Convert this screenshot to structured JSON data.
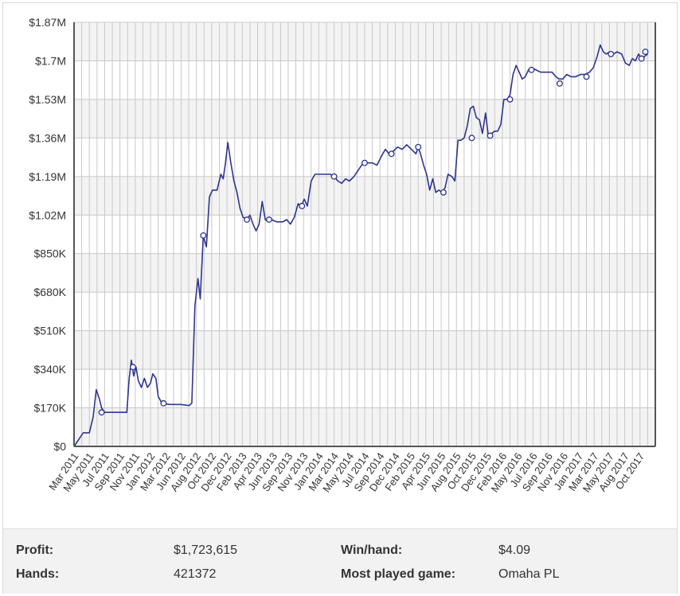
{
  "chart_data": {
    "type": "line",
    "title": "",
    "xlabel": "",
    "ylabel": "",
    "ylim": [
      0,
      1870000
    ],
    "y_ticks": [
      "$0",
      "$170K",
      "$340K",
      "$510K",
      "$680K",
      "$850K",
      "$1.02M",
      "$1.19M",
      "$1.36M",
      "$1.53M",
      "$1.7M",
      "$1.87M"
    ],
    "x_ticks": [
      "Mar 2011",
      "May 2011",
      "Jul 2011",
      "Sep 2011",
      "Nov 2011",
      "Jan 2012",
      "Mar 2012",
      "Jun 2012",
      "Aug 2012",
      "Oct 2012",
      "Dec 2012",
      "Feb 2013",
      "Apr 2013",
      "Jun 2013",
      "Sep 2013",
      "Nov 2013",
      "Jan 2014",
      "Mar 2014",
      "May 2014",
      "Jul 2014",
      "Sep 2014",
      "Dec 2014",
      "Feb 2015",
      "Apr 2015",
      "Jun 2015",
      "Aug 2015",
      "Oct 2015",
      "Dec 2015",
      "Feb 2016",
      "May 2016",
      "Jul 2016",
      "Sep 2016",
      "Nov 2016",
      "Jan 2017",
      "Mar 2017",
      "May 2017",
      "Aug 2017",
      "Oct 2017"
    ],
    "grid": true,
    "line_color": "#2f3590",
    "series": [
      {
        "values": [
          [
            0.0,
            0
          ],
          [
            0.8,
            40000
          ],
          [
            1.2,
            60000
          ],
          [
            2.0,
            60000
          ],
          [
            2.5,
            130000
          ],
          [
            2.9,
            250000
          ],
          [
            3.3,
            210000
          ],
          [
            3.6,
            170000
          ],
          [
            4.0,
            150000
          ],
          [
            5.0,
            150000
          ],
          [
            6.0,
            150000
          ],
          [
            6.9,
            150000
          ],
          [
            7.2,
            300000
          ],
          [
            7.5,
            380000
          ],
          [
            7.8,
            310000
          ],
          [
            8.1,
            350000
          ],
          [
            8.4,
            290000
          ],
          [
            8.8,
            260000
          ],
          [
            9.2,
            300000
          ],
          [
            9.6,
            260000
          ],
          [
            10.0,
            280000
          ],
          [
            10.3,
            320000
          ],
          [
            10.7,
            300000
          ],
          [
            11.0,
            220000
          ],
          [
            11.5,
            190000
          ],
          [
            12.5,
            185000
          ],
          [
            14.0,
            185000
          ],
          [
            15.0,
            180000
          ],
          [
            15.4,
            190000
          ],
          [
            15.8,
            620000
          ],
          [
            16.2,
            740000
          ],
          [
            16.5,
            650000
          ],
          [
            16.9,
            930000
          ],
          [
            17.3,
            880000
          ],
          [
            17.7,
            1100000
          ],
          [
            18.1,
            1130000
          ],
          [
            18.7,
            1130000
          ],
          [
            19.2,
            1200000
          ],
          [
            19.5,
            1180000
          ],
          [
            19.8,
            1250000
          ],
          [
            20.1,
            1340000
          ],
          [
            20.5,
            1250000
          ],
          [
            20.9,
            1170000
          ],
          [
            21.3,
            1120000
          ],
          [
            21.7,
            1050000
          ],
          [
            22.1,
            1010000
          ],
          [
            22.6,
            1000000
          ],
          [
            23.0,
            1020000
          ],
          [
            23.4,
            980000
          ],
          [
            23.8,
            950000
          ],
          [
            24.2,
            980000
          ],
          [
            24.6,
            1080000
          ],
          [
            25.0,
            1000000
          ],
          [
            25.4,
            990000
          ],
          [
            25.8,
            1000000
          ],
          [
            26.5,
            990000
          ],
          [
            27.3,
            990000
          ],
          [
            27.8,
            1000000
          ],
          [
            28.3,
            980000
          ],
          [
            28.8,
            1010000
          ],
          [
            29.3,
            1070000
          ],
          [
            29.7,
            1060000
          ],
          [
            30.1,
            1090000
          ],
          [
            30.5,
            1060000
          ],
          [
            31.0,
            1170000
          ],
          [
            31.5,
            1200000
          ],
          [
            32.5,
            1200000
          ],
          [
            33.5,
            1200000
          ],
          [
            34.0,
            1190000
          ],
          [
            34.5,
            1170000
          ],
          [
            35.0,
            1160000
          ],
          [
            35.5,
            1180000
          ],
          [
            36.0,
            1170000
          ],
          [
            36.6,
            1190000
          ],
          [
            37.2,
            1220000
          ],
          [
            37.8,
            1250000
          ],
          [
            38.4,
            1250000
          ],
          [
            39.0,
            1250000
          ],
          [
            39.6,
            1240000
          ],
          [
            40.2,
            1280000
          ],
          [
            40.7,
            1310000
          ],
          [
            41.2,
            1290000
          ],
          [
            41.7,
            1300000
          ],
          [
            42.3,
            1320000
          ],
          [
            42.9,
            1310000
          ],
          [
            43.5,
            1330000
          ],
          [
            44.1,
            1310000
          ],
          [
            44.7,
            1290000
          ],
          [
            45.0,
            1320000
          ],
          [
            45.3,
            1290000
          ],
          [
            45.7,
            1240000
          ],
          [
            46.1,
            1200000
          ],
          [
            46.5,
            1130000
          ],
          [
            46.9,
            1180000
          ],
          [
            47.3,
            1120000
          ],
          [
            47.7,
            1130000
          ],
          [
            48.1,
            1120000
          ],
          [
            48.5,
            1140000
          ],
          [
            48.9,
            1200000
          ],
          [
            49.4,
            1190000
          ],
          [
            49.8,
            1170000
          ],
          [
            50.2,
            1350000
          ],
          [
            50.6,
            1350000
          ],
          [
            51.0,
            1360000
          ],
          [
            51.4,
            1410000
          ],
          [
            51.8,
            1490000
          ],
          [
            52.2,
            1500000
          ],
          [
            52.6,
            1450000
          ],
          [
            53.0,
            1440000
          ],
          [
            53.4,
            1380000
          ],
          [
            53.8,
            1470000
          ],
          [
            54.2,
            1360000
          ],
          [
            54.6,
            1380000
          ],
          [
            55.0,
            1390000
          ],
          [
            55.4,
            1390000
          ],
          [
            55.8,
            1420000
          ],
          [
            56.2,
            1530000
          ],
          [
            56.6,
            1530000
          ],
          [
            57.0,
            1550000
          ],
          [
            57.4,
            1640000
          ],
          [
            57.8,
            1680000
          ],
          [
            58.2,
            1650000
          ],
          [
            58.6,
            1620000
          ],
          [
            59.0,
            1630000
          ],
          [
            59.4,
            1660000
          ],
          [
            59.8,
            1670000
          ],
          [
            60.4,
            1660000
          ],
          [
            61.0,
            1650000
          ],
          [
            61.8,
            1650000
          ],
          [
            62.5,
            1650000
          ],
          [
            63.0,
            1630000
          ],
          [
            63.4,
            1620000
          ],
          [
            63.9,
            1620000
          ],
          [
            64.4,
            1640000
          ],
          [
            65.0,
            1630000
          ],
          [
            65.6,
            1630000
          ],
          [
            66.2,
            1640000
          ],
          [
            66.8,
            1640000
          ],
          [
            67.4,
            1650000
          ],
          [
            67.9,
            1670000
          ],
          [
            68.4,
            1720000
          ],
          [
            68.8,
            1770000
          ],
          [
            69.2,
            1740000
          ],
          [
            69.6,
            1730000
          ],
          [
            70.0,
            1740000
          ],
          [
            70.5,
            1730000
          ],
          [
            71.0,
            1740000
          ],
          [
            71.6,
            1730000
          ],
          [
            72.1,
            1690000
          ],
          [
            72.6,
            1680000
          ],
          [
            73.0,
            1710000
          ],
          [
            73.4,
            1700000
          ],
          [
            73.8,
            1730000
          ],
          [
            74.2,
            1710000
          ],
          [
            74.6,
            1720000
          ],
          [
            75.0,
            1730000
          ]
        ],
        "markers": [
          [
            3.6,
            150000
          ],
          [
            7.7,
            350000
          ],
          [
            11.7,
            190000
          ],
          [
            16.9,
            930000
          ],
          [
            22.6,
            1000000
          ],
          [
            25.5,
            1000000
          ],
          [
            29.8,
            1060000
          ],
          [
            34.0,
            1190000
          ],
          [
            38.0,
            1250000
          ],
          [
            41.5,
            1290000
          ],
          [
            45.0,
            1320000
          ],
          [
            48.3,
            1120000
          ],
          [
            52.0,
            1360000
          ],
          [
            54.4,
            1370000
          ],
          [
            57.0,
            1530000
          ],
          [
            59.8,
            1660000
          ],
          [
            63.5,
            1600000
          ],
          [
            67.0,
            1630000
          ],
          [
            70.2,
            1730000
          ],
          [
            74.2,
            1710000
          ],
          [
            74.7,
            1740000
          ]
        ]
      }
    ]
  },
  "stats": {
    "profit_label": "Profit:",
    "profit_value": "$1,723,615",
    "hands_label": "Hands:",
    "hands_value": "421372",
    "winhand_label": "Win/hand:",
    "winhand_value": "$4.09",
    "game_label": "Most played game:",
    "game_value": "Omaha PL"
  }
}
